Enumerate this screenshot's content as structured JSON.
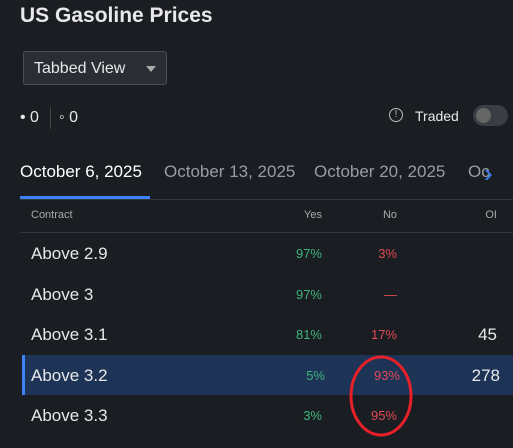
{
  "header": {
    "title": "US Gasoline Prices",
    "view_selector": "Tabbed View"
  },
  "counters": [
    "• 0",
    "◦ 0"
  ],
  "traded_toggle": {
    "label": "Traded",
    "on": false
  },
  "tabs": {
    "items": [
      "October 6, 2025",
      "October 13, 2025",
      "October 20, 2025",
      "Oc"
    ],
    "active": 0
  },
  "table": {
    "columns": [
      "Contract",
      "Yes",
      "No",
      "OI"
    ],
    "rows": [
      {
        "contract": "Above 2.9",
        "yes": "97%",
        "no": "3%"
      },
      {
        "contract": "Above 3",
        "yes": "97%",
        "no": "—"
      },
      {
        "contract": "Above 3.1",
        "yes": "81%",
        "no": "17%",
        "oi": "45"
      },
      {
        "contract": "Above 3.2",
        "yes": "5%",
        "no": "93%",
        "oi": "278",
        "selected": true
      },
      {
        "contract": "Above 3.3",
        "yes": "3%",
        "no": "95%"
      }
    ]
  }
}
